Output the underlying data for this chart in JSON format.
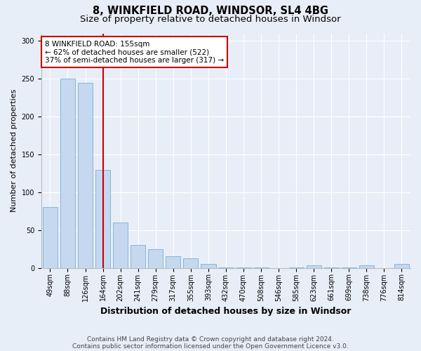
{
  "title1": "8, WINKFIELD ROAD, WINDSOR, SL4 4BG",
  "title2": "Size of property relative to detached houses in Windsor",
  "xlabel": "Distribution of detached houses by size in Windsor",
  "ylabel": "Number of detached properties",
  "categories": [
    "49sqm",
    "88sqm",
    "126sqm",
    "164sqm",
    "202sqm",
    "241sqm",
    "279sqm",
    "317sqm",
    "355sqm",
    "393sqm",
    "432sqm",
    "470sqm",
    "508sqm",
    "546sqm",
    "585sqm",
    "623sqm",
    "661sqm",
    "699sqm",
    "738sqm",
    "776sqm",
    "814sqm"
  ],
  "values": [
    80,
    250,
    245,
    130,
    60,
    30,
    25,
    15,
    13,
    5,
    1,
    1,
    1,
    0,
    1,
    3,
    1,
    1,
    3,
    0,
    5
  ],
  "bar_color": "#c5d8f0",
  "bar_edge_color": "#7aadd4",
  "red_line_index": 3,
  "red_line_color": "#cc0000",
  "annotation_line1": "8 WINKFIELD ROAD: 155sqm",
  "annotation_line2": "← 62% of detached houses are smaller (522)",
  "annotation_line3": "37% of semi-detached houses are larger (317) →",
  "annotation_box_color": "#ffffff",
  "annotation_box_edge": "#cc0000",
  "ylim": [
    0,
    310
  ],
  "yticks": [
    0,
    50,
    100,
    150,
    200,
    250,
    300
  ],
  "footnote1": "Contains HM Land Registry data © Crown copyright and database right 2024.",
  "footnote2": "Contains public sector information licensed under the Open Government Licence v3.0.",
  "bg_color": "#e8eef8",
  "plot_bg_color": "#e8eef8",
  "title1_fontsize": 10.5,
  "title2_fontsize": 9.5,
  "xlabel_fontsize": 9,
  "ylabel_fontsize": 8,
  "tick_fontsize": 7,
  "annotation_fontsize": 7.5,
  "footnote_fontsize": 6.5
}
